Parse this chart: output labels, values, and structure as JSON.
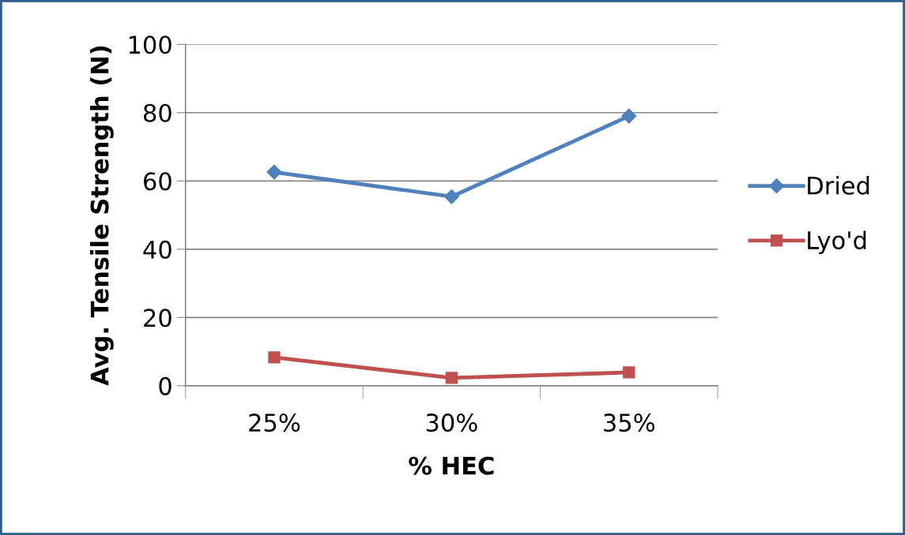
{
  "chart_data": {
    "type": "line",
    "xlabel": "% HEC",
    "ylabel": "Avg. Tensile Strength (N)",
    "categories": [
      "25%",
      "30%",
      "35%"
    ],
    "series": [
      {
        "name": "Dried",
        "color": "#4f81bd",
        "marker": "diamond",
        "values": [
          62.6,
          55.4,
          79.0
        ]
      },
      {
        "name": "Lyo'd",
        "color": "#c0504d",
        "marker": "square",
        "values": [
          8.3,
          2.3,
          3.9
        ]
      }
    ],
    "ylim": [
      0,
      100
    ],
    "yticks": [
      0,
      20,
      40,
      60,
      80,
      100
    ],
    "grid": "y",
    "legend": "right",
    "line_style": "solid"
  }
}
